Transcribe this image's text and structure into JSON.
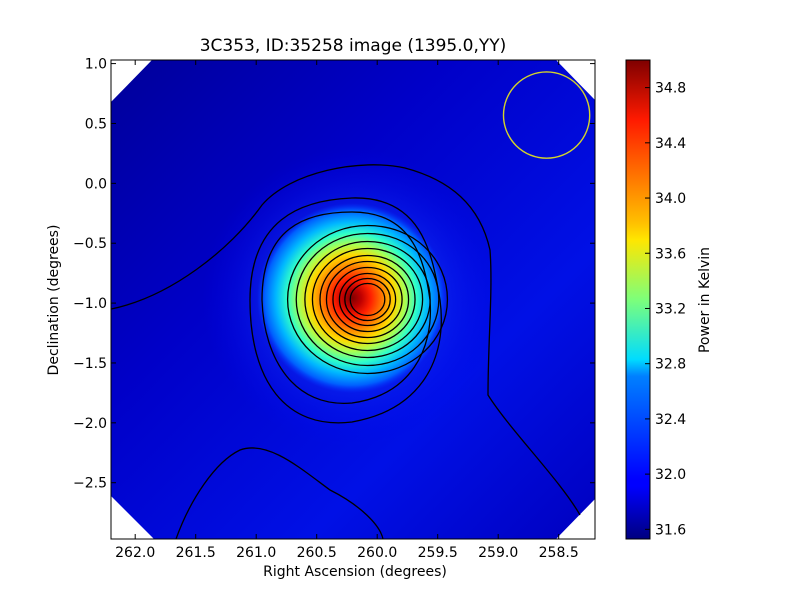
{
  "chart_data": {
    "type": "heatmap",
    "title": "3C353, ID:35258 image (1395.0,YY)",
    "xlabel": "Right Ascension (degrees)",
    "ylabel": "Declination (degrees)",
    "xlim": [
      262.2,
      258.2
    ],
    "ylim": [
      -2.97,
      1.03
    ],
    "x_ticks": [
      "262.0",
      "261.5",
      "261.0",
      "260.5",
      "260.0",
      "259.5",
      "259.0",
      "258.5"
    ],
    "x_tick_values": [
      262.0,
      261.5,
      261.0,
      260.5,
      260.0,
      259.5,
      259.0,
      258.5
    ],
    "y_ticks": [
      "1.0",
      "0.5",
      "0.0",
      "−0.5",
      "−1.0",
      "−1.5",
      "−2.0",
      "−2.5"
    ],
    "y_tick_values": [
      1.0,
      0.5,
      0.0,
      -0.5,
      -1.0,
      -1.5,
      -2.0,
      -2.5
    ],
    "source_peak": {
      "ra": 260.08,
      "dec": -0.97,
      "power": 35.0
    },
    "beam_circle": {
      "ra": 258.6,
      "dec": 0.57,
      "radius_deg": 0.36,
      "color": "#d4d42a"
    },
    "colorbar": {
      "label": "Power in Kelvin",
      "min": 31.53,
      "max": 35.0,
      "ticks": [
        "34.8",
        "34.4",
        "34.0",
        "33.6",
        "33.2",
        "32.8",
        "32.4",
        "32.0",
        "31.6"
      ],
      "tick_values": [
        34.8,
        34.4,
        34.0,
        33.6,
        33.2,
        32.8,
        32.4,
        32.0,
        31.6
      ],
      "colormap": "jet"
    },
    "grid": false
  }
}
